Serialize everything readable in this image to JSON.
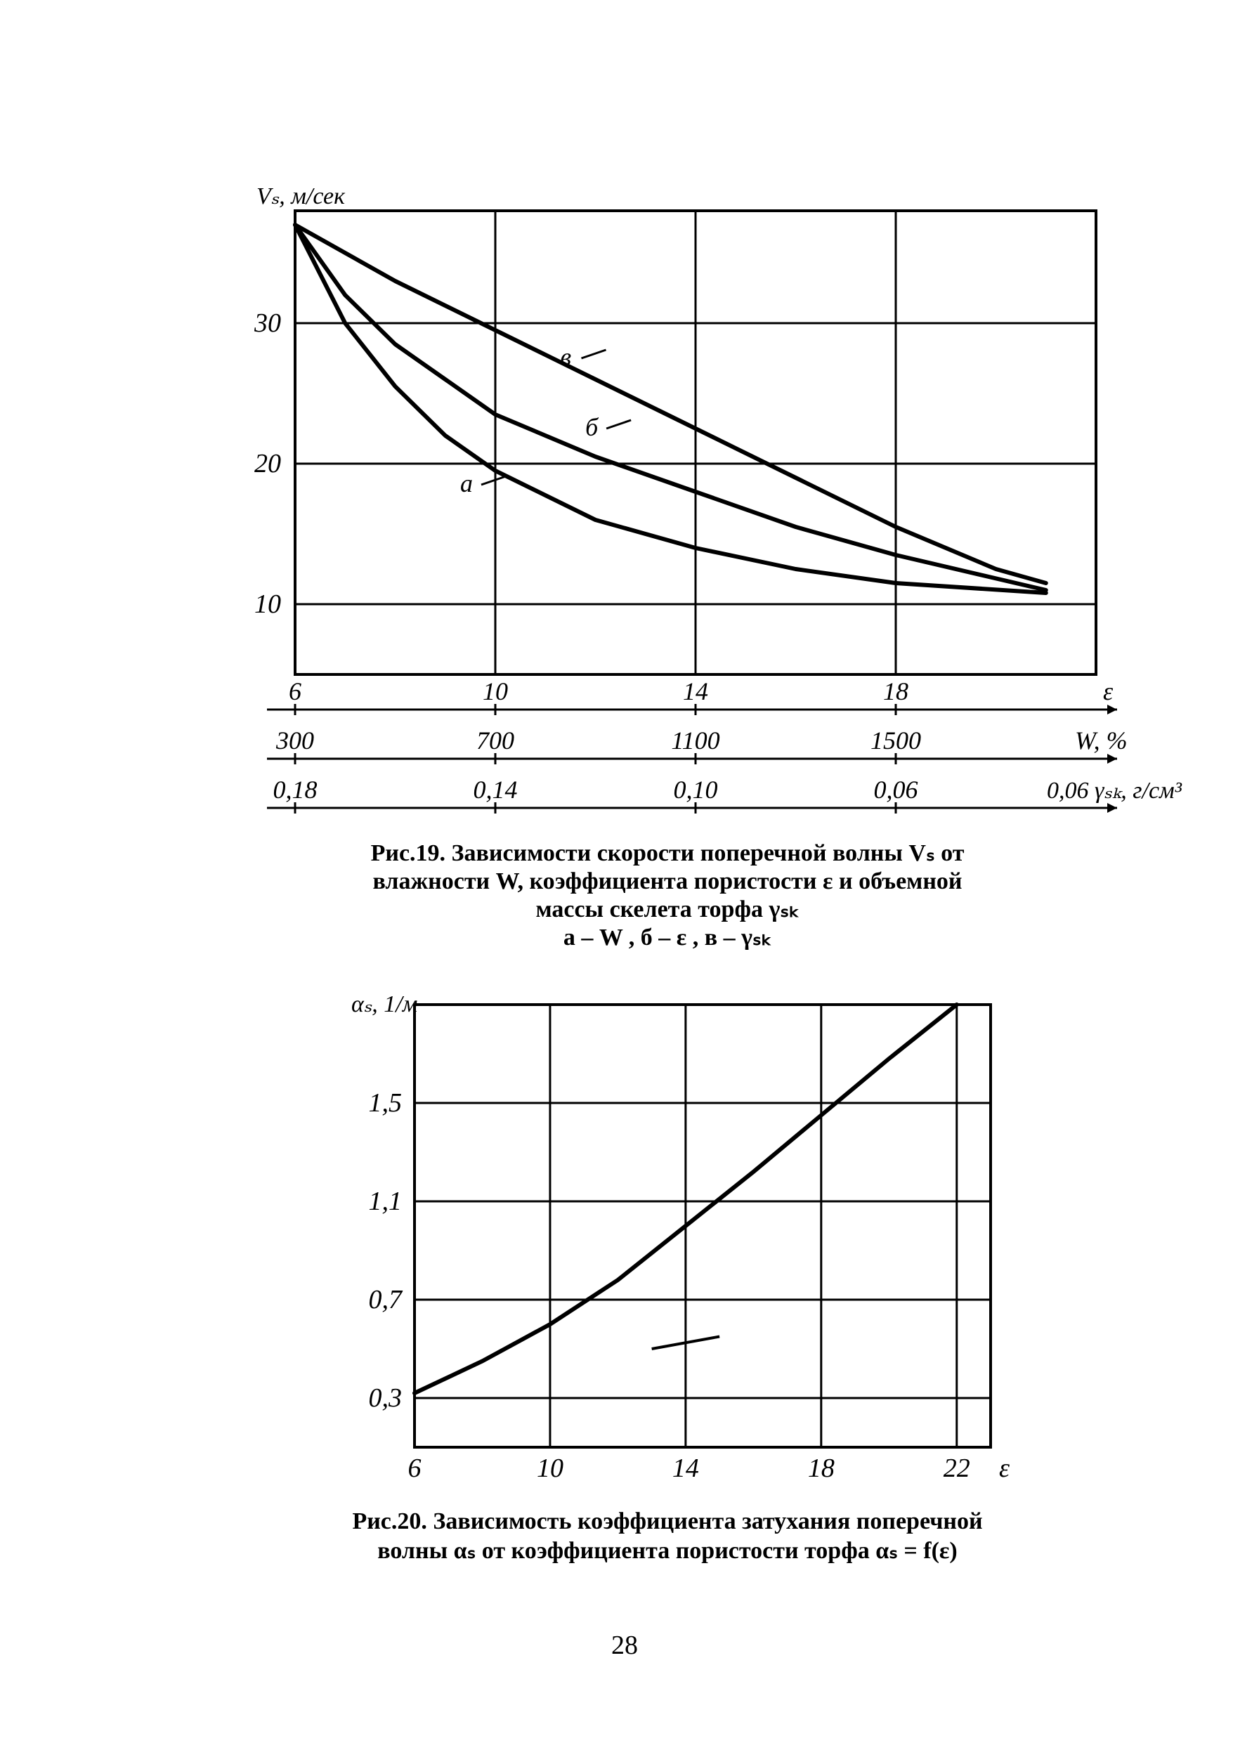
{
  "page_number": "28",
  "fig19": {
    "type": "line",
    "y_axis_label": "Vₛ, м/сек",
    "y_ticks": [
      10,
      20,
      30
    ],
    "y_tick_labels": [
      "10",
      "20",
      "30"
    ],
    "ylim": [
      5,
      38
    ],
    "x_epsilon_ticks": [
      6,
      10,
      14,
      18
    ],
    "x_epsilon_labels": [
      "6",
      "10",
      "14",
      "18"
    ],
    "x_epsilon_right_label": "ε",
    "x_W_ticks": [
      300,
      700,
      1100,
      1500
    ],
    "x_W_labels": [
      "300",
      "700",
      "1100",
      "1500"
    ],
    "x_W_right_label": "W, %",
    "x_rho_ticks": [
      0.18,
      0.14,
      0.1,
      0.06
    ],
    "x_rho_labels": [
      "0,18",
      "0,14",
      "0,10",
      "0,06"
    ],
    "x_rho_right_label": "γₛₖ, г/см³",
    "curves": {
      "a": {
        "label": "а",
        "points": [
          [
            6,
            37
          ],
          [
            7,
            30
          ],
          [
            8,
            25.5
          ],
          [
            9,
            22
          ],
          [
            10,
            19.5
          ],
          [
            12,
            16
          ],
          [
            14,
            14
          ],
          [
            16,
            12.5
          ],
          [
            18,
            11.5
          ],
          [
            21,
            10.8
          ]
        ]
      },
      "b": {
        "label": "б",
        "points": [
          [
            6,
            37
          ],
          [
            7,
            32
          ],
          [
            8,
            28.5
          ],
          [
            9,
            26
          ],
          [
            10,
            23.5
          ],
          [
            12,
            20.5
          ],
          [
            14,
            18
          ],
          [
            16,
            15.5
          ],
          [
            18,
            13.5
          ],
          [
            21,
            11
          ]
        ]
      },
      "v": {
        "label": "в",
        "points": [
          [
            6,
            37
          ],
          [
            8,
            33
          ],
          [
            10,
            29.5
          ],
          [
            12,
            26
          ],
          [
            14,
            22.5
          ],
          [
            16,
            19
          ],
          [
            18,
            15.5
          ],
          [
            20,
            12.5
          ],
          [
            21,
            11.5
          ]
        ]
      }
    },
    "curve_label_positions": {
      "a": [
        10,
        18.5
      ],
      "b": [
        12.5,
        22.5
      ],
      "v": [
        12,
        27.5
      ]
    },
    "caption_lines": [
      "Рис.19. Зависимости скорости поперечной волны Vₛ от",
      "влажности W, коэффициента пористости ε и объемной",
      "массы скелета торфа γₛₖ",
      "а – W ,   б – ε ,   в – γₛₖ"
    ],
    "colors": {
      "stroke": "#000000",
      "grid": "#000000",
      "bg": "#ffffff"
    },
    "stroke_width_frame": 4,
    "stroke_width_grid": 3,
    "stroke_width_curve": 6,
    "title_fontsize": 34
  },
  "fig20": {
    "type": "line",
    "y_axis_label": "αₛ, 1/м",
    "y_ticks": [
      0.3,
      0.7,
      1.1,
      1.5
    ],
    "y_tick_labels": [
      "0,3",
      "0,7",
      "1,1",
      "1,5"
    ],
    "ylim": [
      0.1,
      1.9
    ],
    "x_ticks": [
      6,
      10,
      14,
      18,
      22
    ],
    "x_tick_labels": [
      "6",
      "10",
      "14",
      "18",
      "22"
    ],
    "x_right_label": "ε",
    "xlim": [
      6,
      23
    ],
    "curve": {
      "points": [
        [
          6,
          0.32
        ],
        [
          8,
          0.45
        ],
        [
          10,
          0.6
        ],
        [
          12,
          0.78
        ],
        [
          14,
          1.0
        ],
        [
          16,
          1.22
        ],
        [
          18,
          1.45
        ],
        [
          20,
          1.68
        ],
        [
          22,
          1.9
        ]
      ]
    },
    "extra_mark": {
      "points": [
        [
          13,
          0.5
        ],
        [
          15,
          0.55
        ]
      ]
    },
    "caption_lines": [
      "Рис.20. Зависимость коэффициента затухания поперечной",
      "волны αₛ от коэффициента пористости торфа αₛ = f(ε)"
    ],
    "colors": {
      "stroke": "#000000",
      "grid": "#000000",
      "bg": "#ffffff"
    },
    "stroke_width_frame": 4,
    "stroke_width_grid": 3,
    "stroke_width_curve": 6,
    "title_fontsize": 34
  }
}
